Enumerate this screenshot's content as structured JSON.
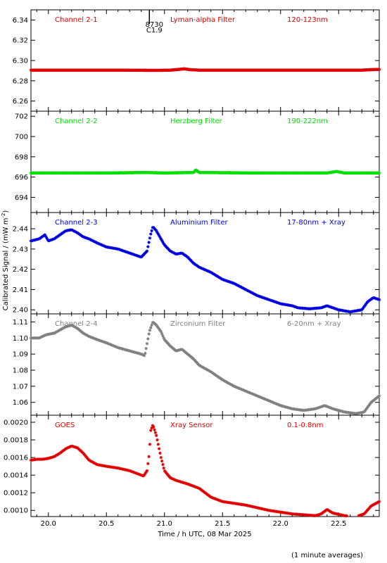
{
  "chart_data": {
    "type": "scatter",
    "xlabel": "Time / h UTC, 08 Mar 2025",
    "ylabel": "Calibrated Signal / (mW m",
    "ylabel_sup": "-2",
    "ylabel_close": ")",
    "xlim": [
      19.85,
      22.85
    ],
    "xticks": [
      20.0,
      20.5,
      21.0,
      21.5,
      22.0,
      22.5
    ],
    "xtick_labels": [
      "20.0",
      "20.5",
      "21.0",
      "21.5",
      "22.0",
      "22.5"
    ],
    "footnote": "(1 minute averages)",
    "flare_marker": {
      "x": 20.87,
      "label1": "8730",
      "label2": "C1.9"
    },
    "panels": [
      {
        "channel": "Channel 2-1",
        "filter": "Lyman-alpha Filter",
        "band": "120-123nm",
        "color": "#e00000",
        "ylim": [
          6.25,
          6.35
        ],
        "yticks": [
          6.26,
          6.28,
          6.3,
          6.32,
          6.34
        ],
        "ytick_labels": [
          "6.26",
          "6.28",
          "6.30",
          "6.32",
          "6.34"
        ],
        "points": [
          [
            19.85,
            6.2905
          ],
          [
            20.2,
            6.2905
          ],
          [
            20.6,
            6.2905
          ],
          [
            20.95,
            6.2903
          ],
          [
            21.05,
            6.2905
          ],
          [
            21.12,
            6.2912
          ],
          [
            21.17,
            6.2918
          ],
          [
            21.22,
            6.291
          ],
          [
            21.3,
            6.2905
          ],
          [
            21.8,
            6.2905
          ],
          [
            22.3,
            6.2905
          ],
          [
            22.7,
            6.2905
          ],
          [
            22.78,
            6.291
          ],
          [
            22.85,
            6.2912
          ]
        ]
      },
      {
        "channel": "Channel 2-2",
        "filter": "Herzberg Filter",
        "band": "190-222nm",
        "color": "#00e000",
        "ylim": [
          692.5,
          702.5
        ],
        "yticks": [
          694,
          696,
          698,
          700,
          702
        ],
        "ytick_labels": [
          "694",
          "696",
          "698",
          "700",
          "702"
        ],
        "points": [
          [
            19.85,
            696.4
          ],
          [
            20.5,
            696.4
          ],
          [
            20.85,
            696.45
          ],
          [
            21.0,
            696.4
          ],
          [
            21.25,
            696.45
          ],
          [
            21.27,
            696.7
          ],
          [
            21.3,
            696.45
          ],
          [
            21.8,
            696.4
          ],
          [
            22.4,
            696.4
          ],
          [
            22.48,
            696.55
          ],
          [
            22.55,
            696.4
          ],
          [
            22.85,
            696.4
          ]
        ]
      },
      {
        "channel": "Channel 2-3",
        "filter": "Aluminium Filter",
        "band": "17-80nm + Xray",
        "color": "#0000dd",
        "ylim": [
          2.398,
          2.448
        ],
        "yticks": [
          2.4,
          2.41,
          2.42,
          2.43,
          2.44
        ],
        "ytick_labels": [
          "2.40",
          "2.41",
          "2.42",
          "2.43",
          "2.44"
        ],
        "points": [
          [
            19.85,
            2.434
          ],
          [
            19.92,
            2.435
          ],
          [
            19.97,
            2.437
          ],
          [
            20.0,
            2.434
          ],
          [
            20.05,
            2.435
          ],
          [
            20.1,
            2.437
          ],
          [
            20.15,
            2.439
          ],
          [
            20.2,
            2.4395
          ],
          [
            20.25,
            2.438
          ],
          [
            20.3,
            2.436
          ],
          [
            20.35,
            2.435
          ],
          [
            20.42,
            2.433
          ],
          [
            20.5,
            2.431
          ],
          [
            20.6,
            2.43
          ],
          [
            20.7,
            2.428
          ],
          [
            20.8,
            2.426
          ],
          [
            20.85,
            2.429
          ],
          [
            20.88,
            2.437
          ],
          [
            20.9,
            2.441
          ],
          [
            20.93,
            2.439
          ],
          [
            20.97,
            2.435
          ],
          [
            21.0,
            2.432
          ],
          [
            21.05,
            2.429
          ],
          [
            21.1,
            2.4275
          ],
          [
            21.15,
            2.428
          ],
          [
            21.2,
            2.426
          ],
          [
            21.25,
            2.423
          ],
          [
            21.3,
            2.421
          ],
          [
            21.4,
            2.4185
          ],
          [
            21.5,
            2.415
          ],
          [
            21.6,
            2.413
          ],
          [
            21.7,
            2.41
          ],
          [
            21.8,
            2.407
          ],
          [
            21.9,
            2.405
          ],
          [
            22.0,
            2.403
          ],
          [
            22.1,
            2.402
          ],
          [
            22.15,
            2.401
          ],
          [
            22.25,
            2.4005
          ],
          [
            22.35,
            2.401
          ],
          [
            22.4,
            2.402
          ],
          [
            22.5,
            2.4
          ],
          [
            22.6,
            2.399
          ],
          [
            22.7,
            2.4
          ],
          [
            22.75,
            2.404
          ],
          [
            22.8,
            2.406
          ],
          [
            22.85,
            2.405
          ]
        ]
      },
      {
        "channel": "Channel 2-4",
        "filter": "Zirconium Filter",
        "band": "6-20nm + Xray",
        "color": "#808080",
        "ylim": [
          1.052,
          1.115
        ],
        "yticks": [
          1.06,
          1.07,
          1.08,
          1.09,
          1.1,
          1.11
        ],
        "ytick_labels": [
          "1.06",
          "1.07",
          "1.08",
          "1.09",
          "1.10",
          "1.11"
        ],
        "points": [
          [
            19.85,
            1.1
          ],
          [
            19.92,
            1.1
          ],
          [
            19.98,
            1.102
          ],
          [
            20.05,
            1.103
          ],
          [
            20.1,
            1.105
          ],
          [
            20.15,
            1.107
          ],
          [
            20.2,
            1.108
          ],
          [
            20.25,
            1.106
          ],
          [
            20.3,
            1.103
          ],
          [
            20.35,
            1.101
          ],
          [
            20.42,
            1.099
          ],
          [
            20.5,
            1.097
          ],
          [
            20.6,
            1.094
          ],
          [
            20.7,
            1.092
          ],
          [
            20.8,
            1.09
          ],
          [
            20.83,
            1.089
          ],
          [
            20.87,
            1.104
          ],
          [
            20.9,
            1.11
          ],
          [
            20.93,
            1.108
          ],
          [
            20.97,
            1.104
          ],
          [
            21.0,
            1.099
          ],
          [
            21.05,
            1.095
          ],
          [
            21.1,
            1.092
          ],
          [
            21.15,
            1.093
          ],
          [
            21.2,
            1.09
          ],
          [
            21.25,
            1.087
          ],
          [
            21.3,
            1.083
          ],
          [
            21.4,
            1.079
          ],
          [
            21.5,
            1.074
          ],
          [
            21.6,
            1.07
          ],
          [
            21.7,
            1.067
          ],
          [
            21.8,
            1.064
          ],
          [
            21.9,
            1.061
          ],
          [
            22.0,
            1.058
          ],
          [
            22.1,
            1.056
          ],
          [
            22.2,
            1.055
          ],
          [
            22.3,
            1.056
          ],
          [
            22.38,
            1.058
          ],
          [
            22.45,
            1.056
          ],
          [
            22.55,
            1.054
          ],
          [
            22.65,
            1.053
          ],
          [
            22.72,
            1.054
          ],
          [
            22.78,
            1.06
          ],
          [
            22.85,
            1.064
          ]
        ]
      },
      {
        "channel": "GOES",
        "filter": "Xray Sensor",
        "band": "0.1-0.8nm",
        "color": "#e00000",
        "ylim": [
          0.00093,
          0.00208
        ],
        "yticks": [
          0.001,
          0.0012,
          0.0014,
          0.0016,
          0.0018,
          0.002
        ],
        "ytick_labels": [
          "0.0010",
          "0.0012",
          "0.0014",
          "0.0016",
          "0.0018",
          "0.0020"
        ],
        "points": [
          [
            19.85,
            0.00157
          ],
          [
            19.9,
            0.00158
          ],
          [
            19.95,
            0.00158
          ],
          [
            20.0,
            0.00159
          ],
          [
            20.05,
            0.00161
          ],
          [
            20.1,
            0.00165
          ],
          [
            20.15,
            0.0017
          ],
          [
            20.2,
            0.00173
          ],
          [
            20.25,
            0.00171
          ],
          [
            20.3,
            0.00165
          ],
          [
            20.35,
            0.00157
          ],
          [
            20.42,
            0.00152
          ],
          [
            20.5,
            0.0015
          ],
          [
            20.6,
            0.00148
          ],
          [
            20.7,
            0.00145
          ],
          [
            20.78,
            0.00141
          ],
          [
            20.82,
            0.00139
          ],
          [
            20.85,
            0.00145
          ],
          [
            20.87,
            0.00165
          ],
          [
            20.88,
            0.0019
          ],
          [
            20.9,
            0.00197
          ],
          [
            20.93,
            0.00185
          ],
          [
            20.97,
            0.0016
          ],
          [
            21.0,
            0.00145
          ],
          [
            21.05,
            0.00137
          ],
          [
            21.1,
            0.00134
          ],
          [
            21.2,
            0.0013
          ],
          [
            21.3,
            0.00125
          ],
          [
            21.4,
            0.00115
          ],
          [
            21.5,
            0.0011
          ],
          [
            21.6,
            0.00108
          ],
          [
            21.7,
            0.00106
          ],
          [
            21.8,
            0.00103
          ],
          [
            21.9,
            0.001
          ],
          [
            22.0,
            0.00098
          ],
          [
            22.1,
            0.00096
          ],
          [
            22.2,
            0.00095
          ],
          [
            22.3,
            0.00094
          ],
          [
            22.35,
            0.00096
          ],
          [
            22.4,
            0.00101
          ],
          [
            22.45,
            0.00097
          ],
          [
            22.55,
            0.00094
          ],
          [
            22.65,
            0.00093
          ],
          [
            22.72,
            0.00096
          ],
          [
            22.78,
            0.00105
          ],
          [
            22.85,
            0.0011
          ]
        ]
      }
    ]
  }
}
